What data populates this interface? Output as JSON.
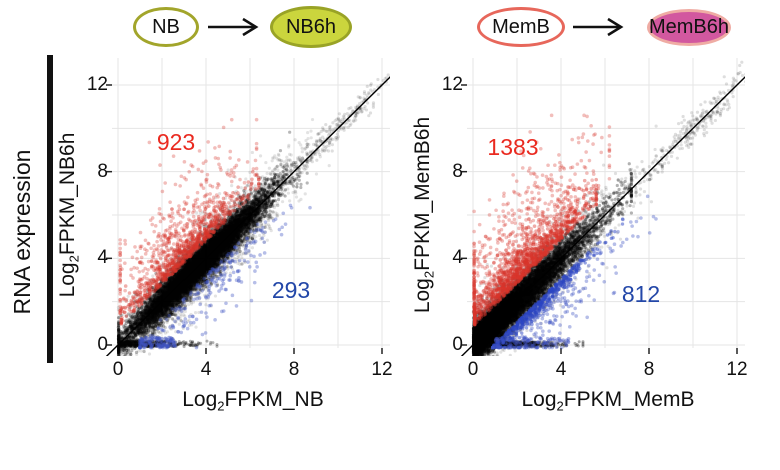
{
  "sidebar": {
    "label": "RNA expression",
    "bar_color": "#111111"
  },
  "header": {
    "left": {
      "from_label": "NB",
      "to_label": "NB6h",
      "from_fill_color": "#ffffff",
      "from_border_color": "#a2a52b",
      "to_fill_color": "#cbd53d",
      "to_border_color": "#99a326"
    },
    "right": {
      "from_label": "MemB",
      "to_label": "MemB6h",
      "from_fill_color": "#ffffff",
      "from_border_color": "#e7675b",
      "to_fill_color": "#d2589f",
      "to_border_color": "#efaca4"
    }
  },
  "chart_data": [
    {
      "type": "scatter",
      "panel": "NB-to-NB6h",
      "xlabel": {
        "prefix": "Log",
        "sub": "2",
        "rest": "FPKM_NB"
      },
      "ylabel": {
        "prefix": "Log",
        "sub": "2",
        "rest": "FPKM_NB6h"
      },
      "xticks": [
        "0",
        "4",
        "8",
        "12"
      ],
      "yticks": [
        "0",
        "4",
        "8",
        "12"
      ],
      "xlim": [
        -0.64,
        12.36
      ],
      "ylim": [
        -0.5,
        13.2
      ],
      "grid_step": 2,
      "grid_color": "#e5e5e5",
      "identity_line_color": "#000000",
      "up": {
        "count": "923",
        "color": "#ea2a20"
      },
      "down": {
        "count": "293",
        "color": "#2347a8"
      },
      "seed": 101,
      "point_clusters": [
        {
          "name": "unchanged-core",
          "n": 9000,
          "color": "#000000",
          "alpha": 0.28,
          "r": 1.6,
          "x": {
            "mean": 3.7,
            "sd": 1.55,
            "min": 0.03,
            "max": 8.6
          },
          "dy": {
            "sd": 0.45,
            "sign": 0
          }
        },
        {
          "name": "unchanged-tight",
          "n": 3000,
          "color": "#000000",
          "alpha": 0.35,
          "r": 1.5,
          "x": {
            "mean": 3.6,
            "sd": 1.3,
            "min": 0.05,
            "max": 7.5
          },
          "dy": {
            "sd": 0.28,
            "sign": 0
          }
        },
        {
          "name": "unchanged-fuzz",
          "n": 2600,
          "color": "#000000",
          "alpha": 0.11,
          "r": 1.6,
          "x": {
            "mean": 3.8,
            "sd": 2.0,
            "min": 0.02,
            "max": 9.6
          },
          "dy": {
            "sd": 0.8,
            "sign": 0
          }
        },
        {
          "name": "zero-floor",
          "n": 450,
          "color": "#000000",
          "alpha": 0.3,
          "r": 1.5,
          "x": {
            "dist": "halfnormal",
            "sd": 1.6,
            "min": 0.05,
            "max": 4.5
          },
          "y": {
            "dist": "uniform",
            "min": -0.08,
            "max": 0.18
          }
        },
        {
          "name": "high-expressed",
          "n": 270,
          "color": "#000000",
          "alpha": 0.13,
          "r": 1.6,
          "x": {
            "mean": 9.9,
            "sd": 1.4,
            "min": 7.3,
            "max": 12.6
          },
          "dy": {
            "sd": 0.32,
            "sign": 0
          }
        },
        {
          "name": "up-band",
          "n": 650,
          "color": "#d8352a",
          "alpha": 0.4,
          "r": 1.8,
          "x": {
            "mean": 3.1,
            "sd": 1.4,
            "min": 0.15,
            "max": 6.4
          },
          "dy": {
            "base": 0.8,
            "sd": 0.55,
            "sign": 1
          }
        },
        {
          "name": "up-spread",
          "n": 430,
          "color": "#d8352a",
          "alpha": 0.32,
          "r": 1.8,
          "x": {
            "mean": 2.6,
            "sd": 1.7,
            "min": 0.1,
            "max": 6.3
          },
          "dy": {
            "base": 1.3,
            "sd": 1.6,
            "sign": 1
          },
          "ymax": 10.4
        },
        {
          "name": "down-spread",
          "n": 250,
          "color": "#4053c2",
          "alpha": 0.38,
          "r": 1.8,
          "x": {
            "mean": 3.9,
            "sd": 1.9,
            "min": 1.0,
            "max": 9.4
          },
          "dy": {
            "base": 0.75,
            "sd": 1.1,
            "sign": -1
          },
          "ymin": -0.12
        },
        {
          "name": "down-floor",
          "n": 90,
          "color": "#4053c2",
          "alpha": 0.5,
          "r": 1.8,
          "x": {
            "dist": "uniform",
            "min": 1.05,
            "max": 2.6
          },
          "y": {
            "dist": "uniform",
            "min": -0.1,
            "max": 0.35
          }
        }
      ]
    },
    {
      "type": "scatter",
      "panel": "MemB-to-MemB6h",
      "xlabel": {
        "prefix": "Log",
        "sub": "2",
        "rest": "FPKM_MemB"
      },
      "ylabel": {
        "prefix": "Log",
        "sub": "2",
        "rest": "FPKM_MemB6h"
      },
      "xticks": [
        "0",
        "4",
        "8",
        "12"
      ],
      "yticks": [
        "0",
        "4",
        "8",
        "12"
      ],
      "xlim": [
        -0.64,
        12.36
      ],
      "ylim": [
        -0.5,
        13.2
      ],
      "grid_step": 2,
      "grid_color": "#e5e5e5",
      "identity_line_color": "#000000",
      "up": {
        "count": "1383",
        "color": "#ea2a20"
      },
      "down": {
        "count": "812",
        "color": "#2347a8"
      },
      "seed": 202,
      "point_clusters": [
        {
          "name": "unchanged-core",
          "n": 9000,
          "color": "#000000",
          "alpha": 0.3,
          "r": 1.6,
          "x": {
            "dist": "halfnormal",
            "sd": 2.4,
            "min": 0.02,
            "max": 7.2
          },
          "dy": {
            "sd": 0.45,
            "sign": 0
          }
        },
        {
          "name": "origin-blob",
          "n": 3500,
          "color": "#000000",
          "alpha": 0.5,
          "r": 1.6,
          "x": {
            "dist": "halfnormal",
            "sd": 0.95,
            "min": 0.02,
            "max": 3.2
          },
          "dy": {
            "sd": 0.3,
            "sign": 0
          }
        },
        {
          "name": "unchanged-fuzz",
          "n": 2600,
          "color": "#000000",
          "alpha": 0.12,
          "r": 1.6,
          "x": {
            "dist": "halfnormal",
            "sd": 2.9,
            "min": 0.02,
            "max": 8.6
          },
          "dy": {
            "sd": 0.8,
            "sign": 0
          }
        },
        {
          "name": "zero-floor",
          "n": 700,
          "color": "#000000",
          "alpha": 0.32,
          "r": 1.5,
          "x": {
            "dist": "halfnormal",
            "sd": 1.8,
            "min": 0.05,
            "max": 5.0
          },
          "y": {
            "dist": "uniform",
            "min": -0.08,
            "max": 0.16
          }
        },
        {
          "name": "high-expressed",
          "n": 280,
          "color": "#000000",
          "alpha": 0.13,
          "r": 1.6,
          "x": {
            "mean": 10.0,
            "sd": 1.5,
            "min": 7.2,
            "max": 12.9
          },
          "dy": {
            "sd": 0.34,
            "sign": 0
          }
        },
        {
          "name": "up-band",
          "n": 950,
          "color": "#d8352a",
          "alpha": 0.42,
          "r": 1.8,
          "x": {
            "mean": 2.4,
            "sd": 1.5,
            "min": 0.08,
            "max": 5.6
          },
          "dy": {
            "base": 0.85,
            "sd": 0.6,
            "sign": 1
          }
        },
        {
          "name": "up-spread",
          "n": 680,
          "color": "#d8352a",
          "alpha": 0.32,
          "r": 1.8,
          "x": {
            "mean": 2.0,
            "sd": 1.8,
            "min": 0.05,
            "max": 6.2
          },
          "dy": {
            "base": 1.4,
            "sd": 1.7,
            "sign": 1
          },
          "ymax": 10.6
        },
        {
          "name": "down-streak",
          "n": 520,
          "color": "#2c46c3",
          "alpha": 0.5,
          "r": 1.7,
          "x": {
            "mean": 2.9,
            "sd": 1.4,
            "min": 0.95,
            "max": 6.8
          },
          "dy": {
            "base": 0.95,
            "sd": 0.3,
            "sign": -1
          },
          "ymin": -0.1
        },
        {
          "name": "down-spread",
          "n": 270,
          "color": "#4053c2",
          "alpha": 0.38,
          "r": 1.8,
          "x": {
            "mean": 3.6,
            "sd": 2.0,
            "min": 0.9,
            "max": 10.6
          },
          "dy": {
            "base": 1.0,
            "sd": 1.45,
            "sign": -1
          },
          "ymin": -0.12
        },
        {
          "name": "down-floor",
          "n": 70,
          "color": "#4053c2",
          "alpha": 0.45,
          "r": 1.8,
          "x": {
            "dist": "uniform",
            "min": 1.0,
            "max": 4.5
          },
          "y": {
            "dist": "uniform",
            "min": -0.1,
            "max": 0.3
          }
        }
      ]
    }
  ]
}
